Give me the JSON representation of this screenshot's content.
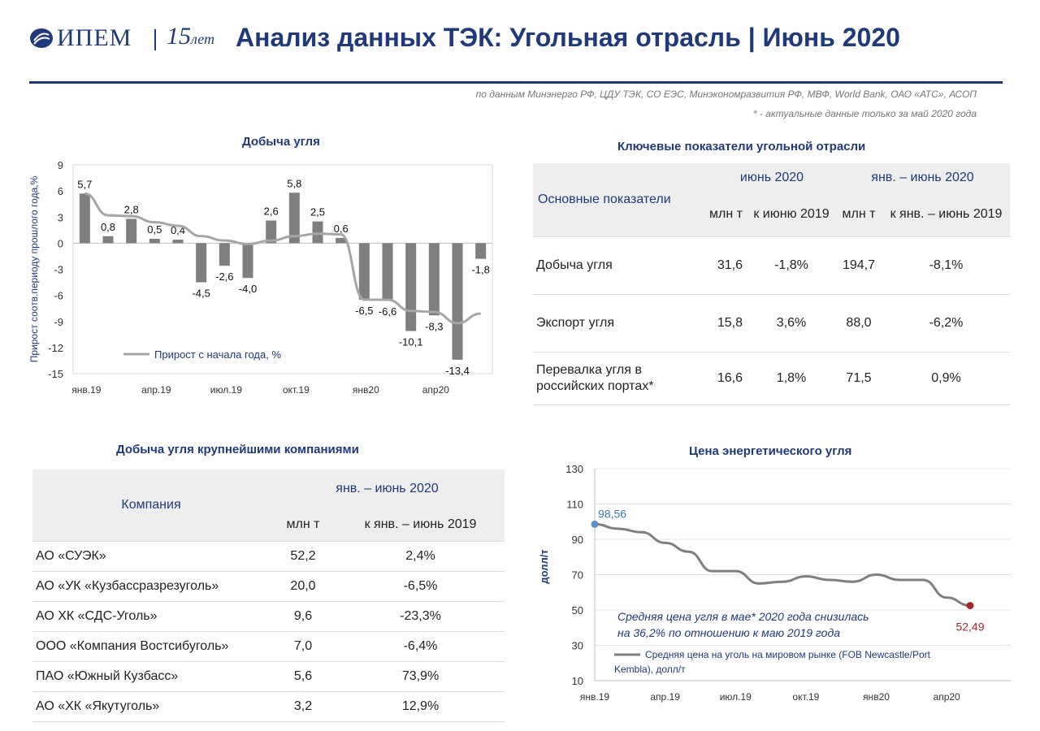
{
  "header": {
    "logo_text": "ИПЕМ",
    "anniversary_number": "15",
    "anniversary_word": "лет",
    "title": "Анализ данных ТЭК: Угольная отрасль | Июнь 2020",
    "source_note": "по данным Минэнерго РФ, ЦДУ ТЭК, СО ЕЭС, Минэкономразвития РФ, МВФ, World Bank, ОАО «АТС», АСОП",
    "footnote": "* - актуальные данные только за май 2020 года"
  },
  "production_chart": {
    "title": "Добыча угля",
    "colors": {
      "bar": "#7f7f7f",
      "line": "#a6a6a6",
      "axis_label": "#1f3a7a"
    }
  },
  "kpi_table": {
    "title": "Ключевые показатели угольной отрасли",
    "row_header": "Основные показатели",
    "group_1": "июнь 2020",
    "group_2": "янв. – июнь 2020",
    "sub_1": "млн т",
    "sub_2": "к июню 2019",
    "sub_3": "млн т",
    "sub_4": "к янв. – июнь 2019",
    "rows": [
      {
        "label": "Добыча угля",
        "v1": "31,6",
        "p1": "-1,8%",
        "v2": "194,7",
        "p2": "-8,1%"
      },
      {
        "label": "Экспорт угля",
        "v1": "15,8",
        "p1": "3,6%",
        "v2": "88,0",
        "p2": "-6,2%"
      },
      {
        "label": "Перевалка угля в российских портах*",
        "v1": "16,6",
        "p1": "1,8%",
        "v2": "71,5",
        "p2": "0,9%"
      }
    ],
    "colors": {
      "negative": "#a4262c",
      "positive": "#3f78b8"
    }
  },
  "company_table": {
    "title": "Добыча угля крупнейшими компаниями",
    "col_company": "Компания",
    "group": "янв. – июнь 2020",
    "sub_1": "млн т",
    "sub_2": "к янв. – июнь 2019",
    "rows": [
      {
        "company": "АО «СУЭК»",
        "value": "52,2",
        "change": "2,4%"
      },
      {
        "company": "АО «УК «Кузбассразрезуголь»",
        "value": "20,0",
        "change": "-6,5%"
      },
      {
        "company": "АО ХК «СДС-Уголь»",
        "value": "9,6",
        "change": "-23,3%"
      },
      {
        "company": "ООО «Компания Востсибуголь»",
        "value": "7,0",
        "change": "-6,4%"
      },
      {
        "company": "ПАО «Южный Кузбасс»",
        "value": "5,6",
        "change": "73,9%"
      },
      {
        "company": "АО «ХК «Якутуголь»",
        "value": "3,2",
        "change": "12,9%"
      }
    ]
  },
  "price_chart": {
    "title": "Цена энергетического угля",
    "annotation_line1": "Средняя цена угля в мае* 2020 года снизилась",
    "annotation_line2": "на 36,2% по отношению к маю 2019 года",
    "colors": {
      "line": "#7f7f7f",
      "start_dot": "#5b8fd0",
      "end_dot": "#a4262c",
      "start_label": "#3f78b8",
      "end_label": "#a4262c",
      "annotation": "#1f3a7a"
    }
  },
  "chart_data": [
    {
      "type": "bar",
      "title": "Добыча угля",
      "ylabel": "Прирост соотв.периоду прошлого года,%",
      "ylim": [
        -15,
        9
      ],
      "yticks": [
        9,
        6,
        3,
        0,
        -3,
        -6,
        -9,
        -12,
        -15
      ],
      "x_tick_labels": [
        "янв.19",
        "апр.19",
        "июл.19",
        "окт.19",
        "янв20",
        "апр20"
      ],
      "categories": [
        "янв.19",
        "фев.19",
        "мар.19",
        "апр.19",
        "май.19",
        "июн.19",
        "июл.19",
        "авг.19",
        "сен.19",
        "окт.19",
        "ноя.19",
        "дек.19",
        "янв.20",
        "фев.20",
        "мар.20",
        "апр.20",
        "май.20",
        "июн.20"
      ],
      "series": [
        {
          "values": [
            5.7,
            0.8,
            2.8,
            0.5,
            0.4,
            -4.5,
            -2.6,
            -4.0,
            2.6,
            5.8,
            2.5,
            0.6,
            -6.5,
            -6.6,
            -10.1,
            -8.3,
            -13.4,
            -1.8
          ]
        },
        {
          "name": "Прирост с начала года, %",
          "type": "line",
          "values": [
            5.7,
            3.2,
            3.1,
            2.4,
            2.0,
            0.8,
            0.3,
            -0.1,
            0.3,
            0.8,
            1.1,
            1.0,
            -6.5,
            -6.5,
            -7.8,
            -7.9,
            -9.2,
            -8.1
          ]
        }
      ],
      "data_labels": [
        "5,7",
        "0,8",
        "2,8",
        "0,5",
        "0,4",
        "-4,5",
        "-2,6",
        "-4,0",
        "2,6",
        "5,8",
        "2,5",
        "0,6",
        "-6,5",
        "-6,6",
        "-10,1",
        "-8,3",
        "-13,4",
        "-1,8"
      ],
      "legend": "bottom-left"
    },
    {
      "type": "line",
      "title": "Цена энергетического угля",
      "ylabel": "долл/т",
      "ylim": [
        10,
        130
      ],
      "yticks": [
        130,
        110,
        90,
        70,
        50,
        30,
        10
      ],
      "x_tick_labels": [
        "янв.19",
        "апр.19",
        "июл.19",
        "окт.19",
        "янв20",
        "апр20"
      ],
      "series": [
        {
          "name": "Средняя цена на уголь на мировом рынке (FOB Newcastle/Port Kembla), долл/т",
          "values": [
            98.56,
            96,
            94,
            88,
            83,
            72,
            72,
            65,
            66,
            69,
            67,
            66,
            70,
            67,
            67,
            57,
            52.49
          ]
        }
      ],
      "point_labels": {
        "first": "98,56",
        "last": "52,49"
      },
      "legend": "bottom-left"
    }
  ]
}
